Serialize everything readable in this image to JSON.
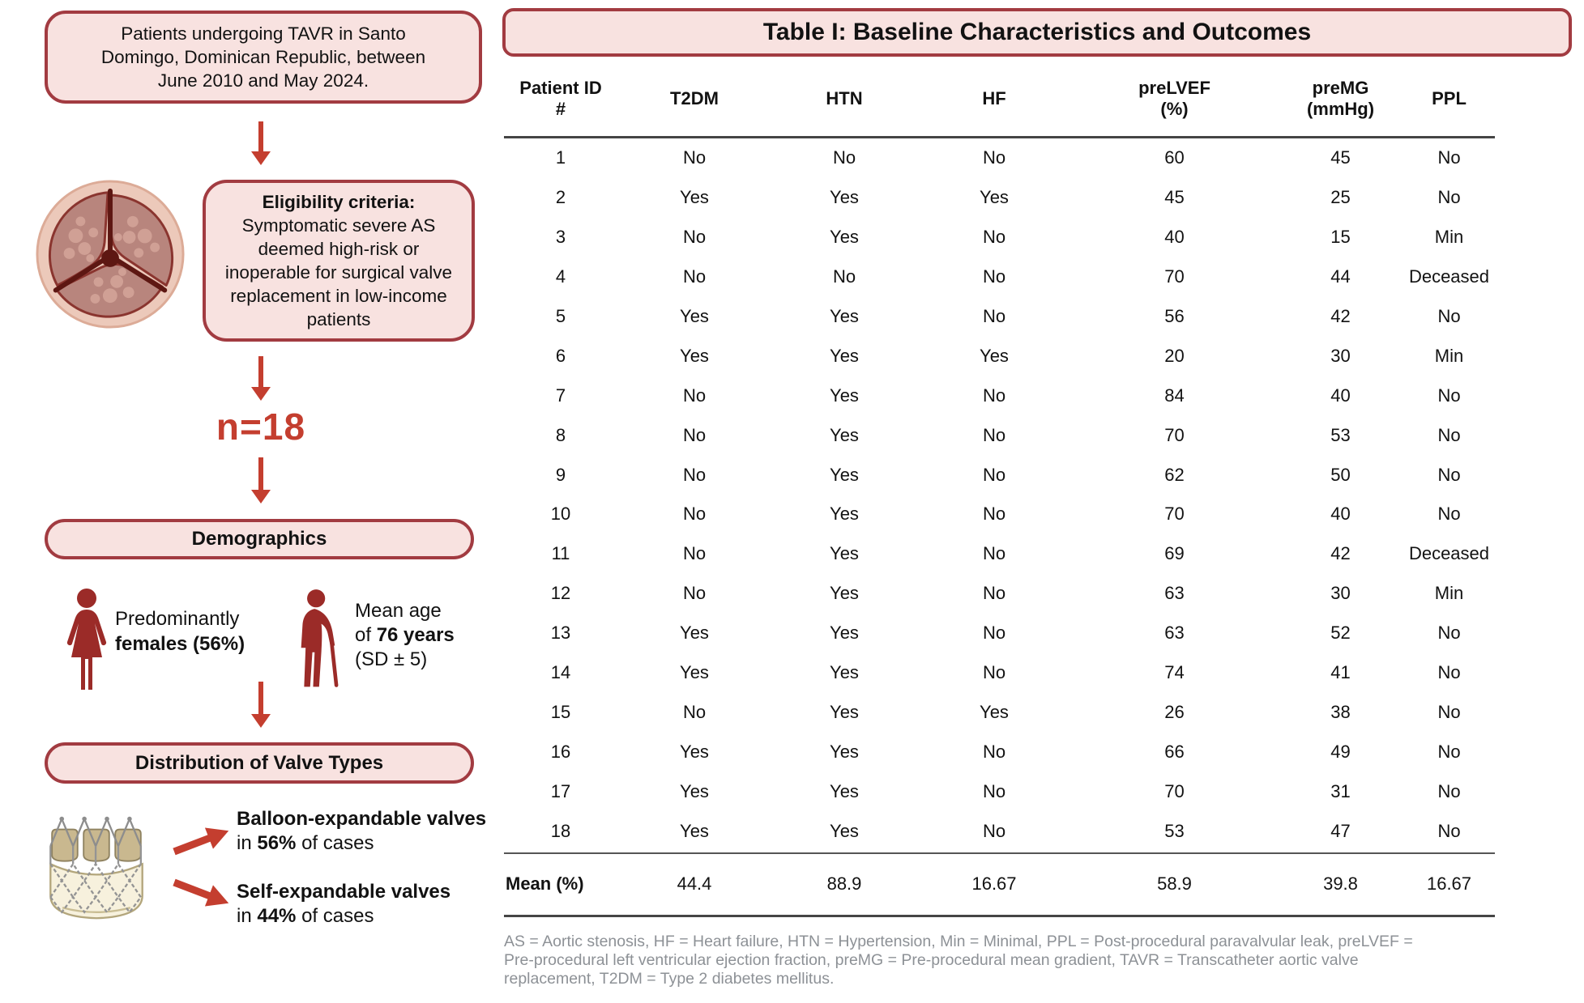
{
  "flowchart": {
    "top_box": "Patients undergoing TAVR in Santo Domingo, Dominican Republic, between June 2010 and May 2024.",
    "eligibility": {
      "title": "Eligibility criteria:",
      "body": "Symptomatic severe AS deemed high-risk or inoperable for surgical valve replacement in low-income patients"
    },
    "n_label": "n=18",
    "demographics_header": "Demographics",
    "female": {
      "line1": "Predominantly",
      "line2": "females (56%)"
    },
    "age": {
      "line1": "Mean age",
      "line2_pre": "of ",
      "line2_bold": "76 years",
      "line3": "(SD ± 5)"
    },
    "valve_header": "Distribution of Valve Types",
    "balloon": {
      "title": "Balloon-expandable valves",
      "pre": "in ",
      "pct": "56%",
      "post": " of cases"
    },
    "self_expandable": {
      "title": "Self-expandable valves",
      "pre": "in ",
      "pct": "44%",
      "post": " of cases"
    }
  },
  "table": {
    "title": "Table I: Baseline Characteristics and Outcomes",
    "columns": [
      "Patient ID\n#",
      "T2DM",
      "HTN",
      "HF",
      "preLVEF\n(%)",
      "preMG\n(mmHg)",
      "PPL"
    ],
    "rows": [
      [
        "1",
        "No",
        "No",
        "No",
        "60",
        "45",
        "No"
      ],
      [
        "2",
        "Yes",
        "Yes",
        "Yes",
        "45",
        "25",
        "No"
      ],
      [
        "3",
        "No",
        "Yes",
        "No",
        "40",
        "15",
        "Min"
      ],
      [
        "4",
        "No",
        "No",
        "No",
        "70",
        "44",
        "Deceased"
      ],
      [
        "5",
        "Yes",
        "Yes",
        "No",
        "56",
        "42",
        "No"
      ],
      [
        "6",
        "Yes",
        "Yes",
        "Yes",
        "20",
        "30",
        "Min"
      ],
      [
        "7",
        "No",
        "Yes",
        "No",
        "84",
        "40",
        "No"
      ],
      [
        "8",
        "No",
        "Yes",
        "No",
        "70",
        "53",
        "No"
      ],
      [
        "9",
        "No",
        "Yes",
        "No",
        "62",
        "50",
        "No"
      ],
      [
        "10",
        "No",
        "Yes",
        "No",
        "70",
        "40",
        "No"
      ],
      [
        "11",
        "No",
        "Yes",
        "No",
        "69",
        "42",
        "Deceased"
      ],
      [
        "12",
        "No",
        "Yes",
        "No",
        "63",
        "30",
        "Min"
      ],
      [
        "13",
        "Yes",
        "Yes",
        "No",
        "63",
        "52",
        "No"
      ],
      [
        "14",
        "Yes",
        "Yes",
        "No",
        "74",
        "41",
        "No"
      ],
      [
        "15",
        "No",
        "Yes",
        "Yes",
        "26",
        "38",
        "No"
      ],
      [
        "16",
        "Yes",
        "Yes",
        "No",
        "66",
        "49",
        "No"
      ],
      [
        "17",
        "Yes",
        "Yes",
        "No",
        "70",
        "31",
        "No"
      ],
      [
        "18",
        "Yes",
        "Yes",
        "No",
        "53",
        "47",
        "No"
      ]
    ],
    "mean": [
      "Mean (%)",
      "44.4",
      "88.9",
      "16.67",
      "58.9",
      "39.8",
      "16.67"
    ],
    "footnote_lines": [
      "AS = Aortic stenosis, HF = Heart failure, HTN = Hypertension, Min = Minimal, PPL = Post-procedural paravalvular leak, preLVEF =",
      "Pre-procedural left ventricular ejection fraction, preMG = Pre-procedural mean gradient, TAVR = Transcatheter aortic valve",
      "replacement, T2DM = Type 2 diabetes mellitus."
    ]
  },
  "colors": {
    "box_fill": "#f8e2e0",
    "box_border": "#a23b41",
    "arrow_red": "#c43e2f",
    "icon_red": "#9b2b28",
    "footnote_gray": "#8d9196",
    "rule_gray": "#454545"
  }
}
